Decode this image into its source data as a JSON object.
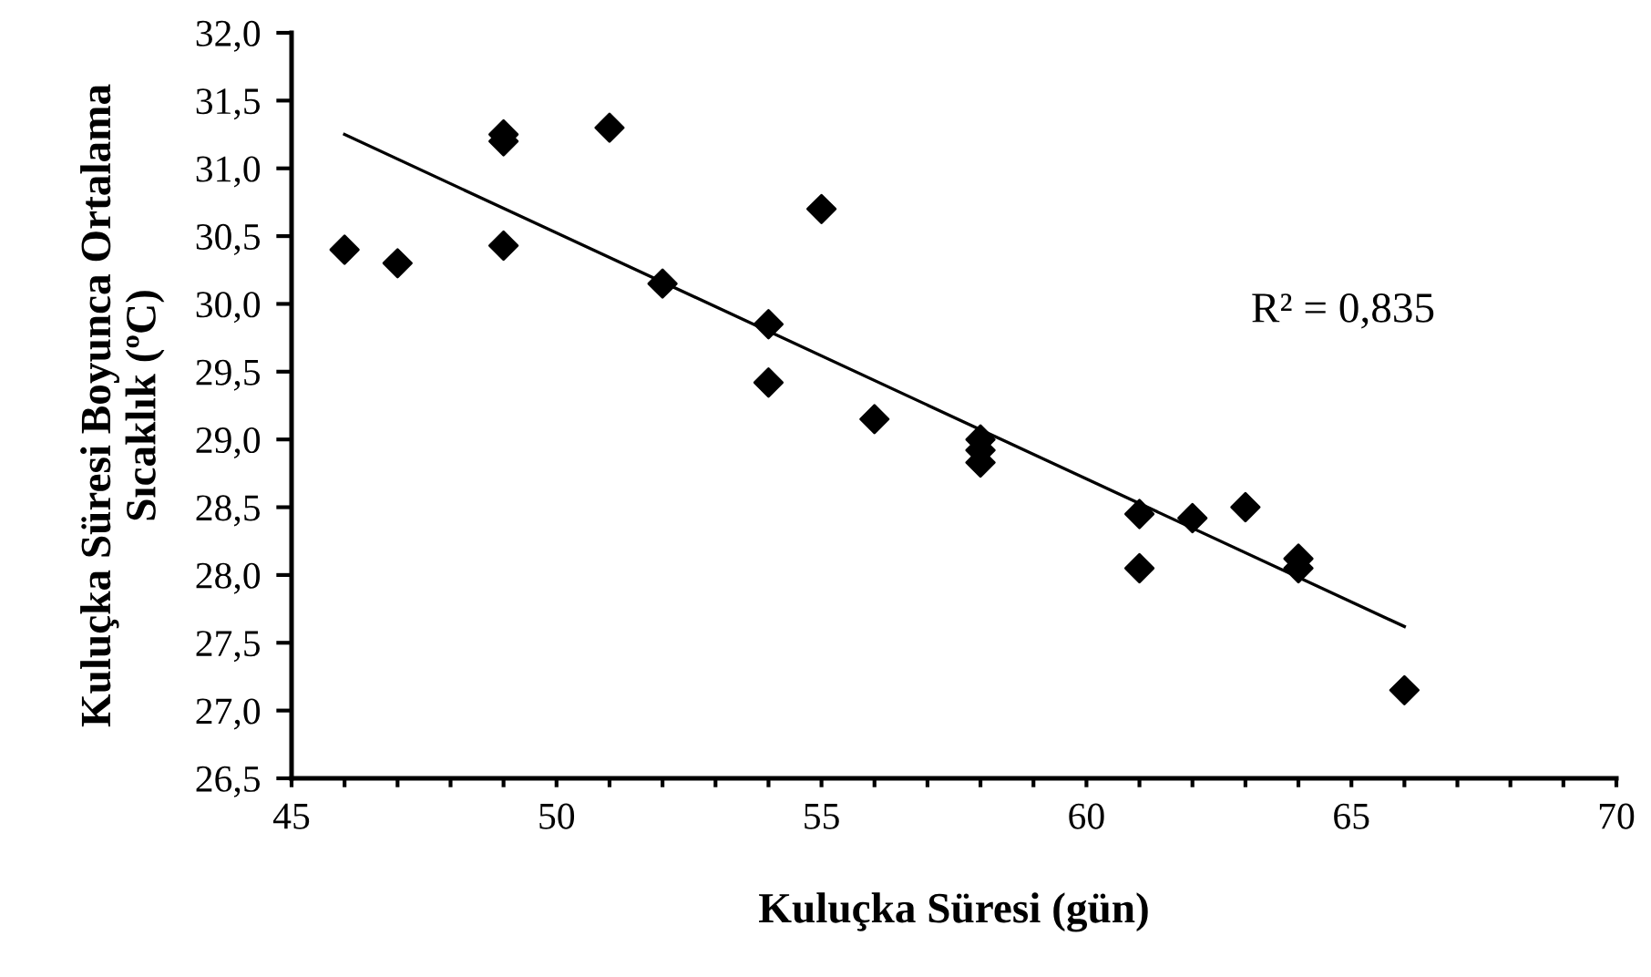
{
  "chart_data": {
    "type": "scatter",
    "xlabel": "Kuluçka Süresi (gün)",
    "ylabel": "Kuluçka Süresi Boyunca Ortalama\nSıcaklık (ºC)",
    "series": [
      {
        "color": "#000000",
        "marker": "diamond",
        "x": [
          46,
          47,
          49,
          49,
          49,
          51,
          52,
          54,
          54,
          55,
          56,
          58,
          58,
          58,
          61,
          61,
          62,
          63,
          64,
          64,
          66
        ],
        "values": [
          30.4,
          30.3,
          31.25,
          31.2,
          30.43,
          31.3,
          30.15,
          29.85,
          29.42,
          30.7,
          29.15,
          29.0,
          28.92,
          28.83,
          28.45,
          28.05,
          28.42,
          28.5,
          28.12,
          28.05,
          27.15
        ]
      },
      {
        "type": "line",
        "color": "#000000",
        "marker": "none",
        "x": [
          46,
          66
        ],
        "values": [
          31.25,
          27.62
        ]
      }
    ],
    "annotations": [
      "R² = 0,835"
    ],
    "xlim": [
      45,
      70
    ],
    "xticks": [
      45,
      {
        "value": 46,
        "label": null
      },
      {
        "value": 47,
        "label": null
      },
      {
        "value": 48,
        "label": null
      },
      {
        "value": 49,
        "label": null
      },
      50,
      {
        "value": 51,
        "label": null
      },
      {
        "value": 52,
        "label": null
      },
      {
        "value": 53,
        "label": null
      },
      {
        "value": 54,
        "label": null
      },
      55,
      {
        "value": 56,
        "label": null
      },
      {
        "value": 57,
        "label": null
      },
      {
        "value": 58,
        "label": null
      },
      {
        "value": 59,
        "label": null
      },
      60,
      {
        "value": 61,
        "label": null
      },
      {
        "value": 62,
        "label": null
      },
      {
        "value": 63,
        "label": null
      },
      {
        "value": 64,
        "label": null
      },
      65,
      {
        "value": 66,
        "label": null
      },
      {
        "value": 67,
        "label": null
      },
      {
        "value": 68,
        "label": null
      },
      {
        "value": 69,
        "label": null
      },
      70
    ],
    "ylim": [
      26.5,
      32.0
    ],
    "yticks": [
      {
        "value": 26.5,
        "label": "26,5"
      },
      {
        "value": 27.0,
        "label": "27,0"
      },
      {
        "value": 27.5,
        "label": "27,5"
      },
      {
        "value": 28.0,
        "label": "28,0"
      },
      {
        "value": 28.5,
        "label": "28,5"
      },
      {
        "value": 29.0,
        "label": "29,0"
      },
      {
        "value": 29.5,
        "label": "29,5"
      },
      {
        "value": 30.0,
        "label": "30,0"
      },
      {
        "value": 30.5,
        "label": "30,5"
      },
      {
        "value": 31.0,
        "label": "31,0"
      },
      {
        "value": 31.5,
        "label": "31,5"
      },
      {
        "value": 32.0,
        "label": "32,0"
      }
    ],
    "grid": false,
    "legend": false
  }
}
